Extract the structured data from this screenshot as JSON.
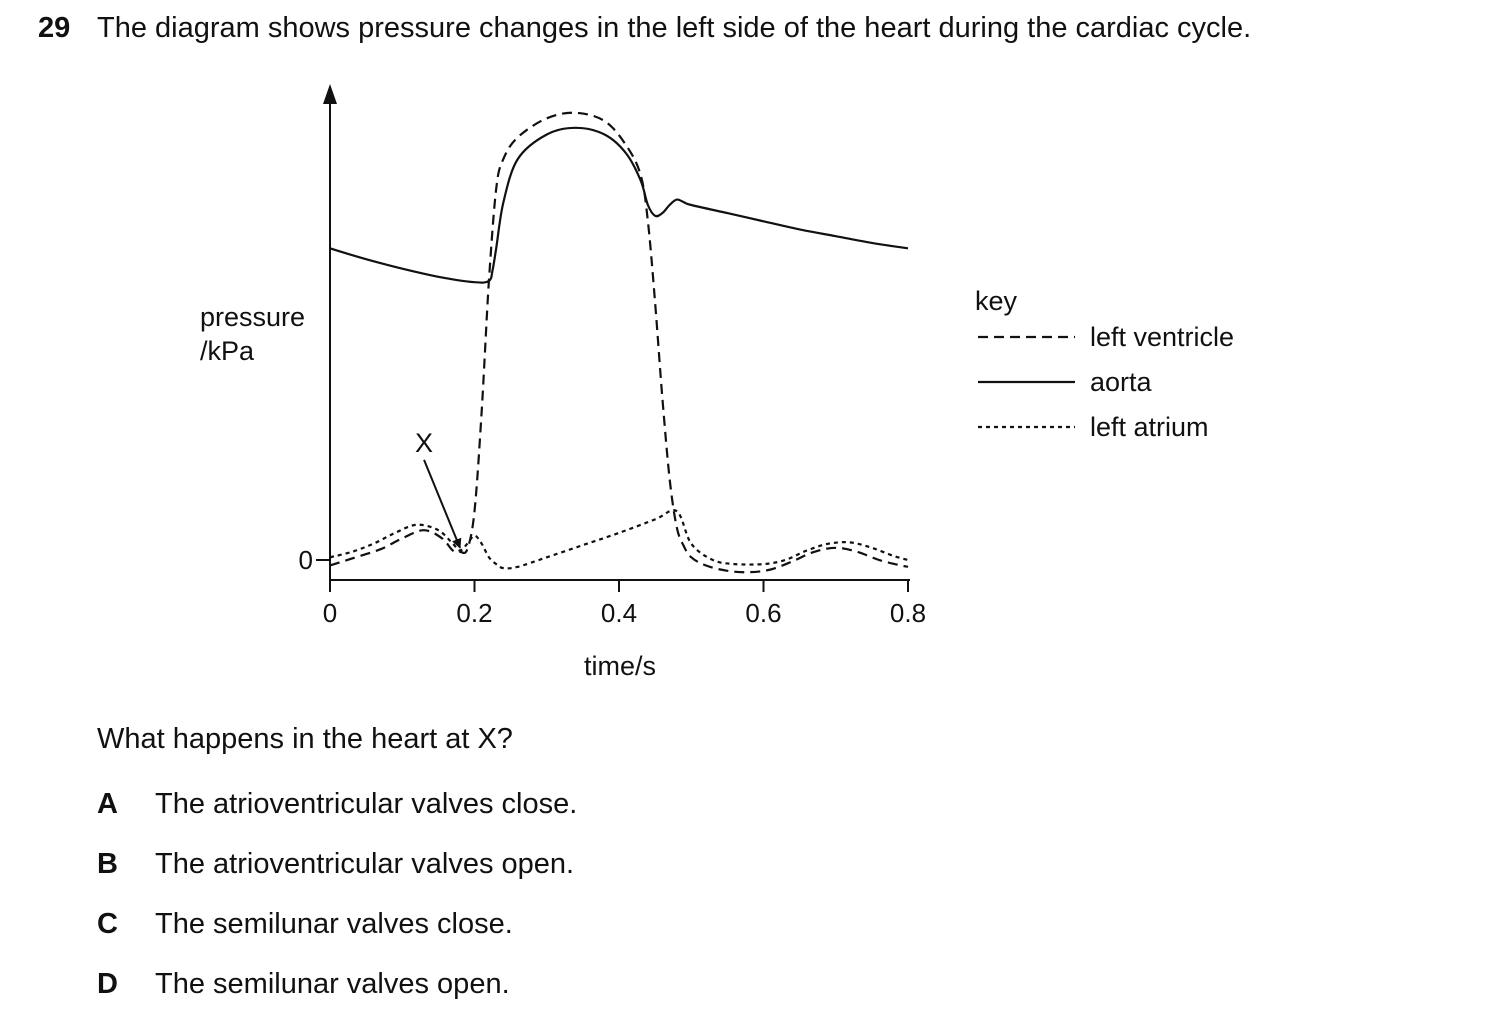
{
  "question": {
    "number": "29",
    "stem": "The diagram shows pressure changes in the left side of the heart during the cardiac cycle.",
    "prompt": "What happens in the heart at X?",
    "options": [
      {
        "letter": "A",
        "text": "The atrioventricular valves close."
      },
      {
        "letter": "B",
        "text": "The atrioventricular valves open."
      },
      {
        "letter": "C",
        "text": "The semilunar valves close."
      },
      {
        "letter": "D",
        "text": "The semilunar valves open."
      }
    ]
  },
  "chart_data": {
    "type": "line",
    "title": "",
    "xlabel": "time / s",
    "ylabel": "pressure / kPa",
    "xlim": [
      0,
      0.8
    ],
    "ylim": [
      -0.4,
      16
    ],
    "x_ticks": [
      0,
      0.2,
      0.4,
      0.6,
      0.8
    ],
    "x_tick_labels": [
      "0",
      "0.2",
      "0.4",
      "0.6",
      "0.8"
    ],
    "y_ticks": [
      0
    ],
    "y_tick_labels": [
      "0"
    ],
    "grid": false,
    "legend_title": "key",
    "legend_position": "right",
    "annotation": {
      "label": "X",
      "x": 0.18,
      "y": 0.3
    },
    "series": [
      {
        "name": "left ventricle",
        "style": "dashed",
        "x": [
          0,
          0.03,
          0.07,
          0.1,
          0.13,
          0.155,
          0.17,
          0.18,
          0.19,
          0.2,
          0.21,
          0.22,
          0.23,
          0.24,
          0.26,
          0.3,
          0.34,
          0.38,
          0.41,
          0.43,
          0.44,
          0.45,
          0.46,
          0.47,
          0.48,
          0.49,
          0.5,
          0.52,
          0.55,
          0.58,
          0.61,
          0.64,
          0.67,
          0.7,
          0.73,
          0.76,
          0.79,
          0.8
        ],
        "y": [
          -0.2,
          0.05,
          0.4,
          0.8,
          1.1,
          0.8,
          0.35,
          0.3,
          0.4,
          1.8,
          5.5,
          10.3,
          13.7,
          14.8,
          15.6,
          16.3,
          16.5,
          16.2,
          15.3,
          14.2,
          12.5,
          9.5,
          6.0,
          3.0,
          1.2,
          0.5,
          0.1,
          -0.2,
          -0.4,
          -0.45,
          -0.35,
          -0.05,
          0.3,
          0.45,
          0.3,
          0.0,
          -0.2,
          -0.25
        ]
      },
      {
        "name": "aorta",
        "style": "solid",
        "x": [
          0,
          0.05,
          0.1,
          0.15,
          0.2,
          0.22,
          0.225,
          0.23,
          0.24,
          0.26,
          0.3,
          0.34,
          0.38,
          0.41,
          0.43,
          0.44,
          0.45,
          0.46,
          0.47,
          0.48,
          0.49,
          0.5,
          0.55,
          0.6,
          0.65,
          0.7,
          0.75,
          0.8
        ],
        "y": [
          11.5,
          11.1,
          10.75,
          10.45,
          10.25,
          10.3,
          10.7,
          11.5,
          13.2,
          14.8,
          15.7,
          15.95,
          15.7,
          15.0,
          14.0,
          13.1,
          12.7,
          12.8,
          13.1,
          13.3,
          13.2,
          13.1,
          12.8,
          12.5,
          12.2,
          11.95,
          11.7,
          11.5
        ]
      },
      {
        "name": "left atrium",
        "style": "dotted",
        "x": [
          0,
          0.03,
          0.06,
          0.09,
          0.12,
          0.15,
          0.17,
          0.18,
          0.19,
          0.2,
          0.21,
          0.22,
          0.23,
          0.24,
          0.26,
          0.3,
          0.35,
          0.4,
          0.45,
          0.48,
          0.5,
          0.53,
          0.56,
          0.6,
          0.63,
          0.66,
          0.69,
          0.72,
          0.75,
          0.78,
          0.8
        ],
        "y": [
          0.1,
          0.3,
          0.6,
          1.0,
          1.3,
          1.1,
          0.6,
          0.35,
          0.6,
          0.9,
          0.6,
          0.1,
          -0.15,
          -0.3,
          -0.25,
          0.1,
          0.55,
          1.0,
          1.5,
          1.8,
          0.6,
          0.0,
          -0.15,
          -0.15,
          0.0,
          0.35,
          0.6,
          0.65,
          0.45,
          0.15,
          0.0
        ]
      }
    ]
  }
}
